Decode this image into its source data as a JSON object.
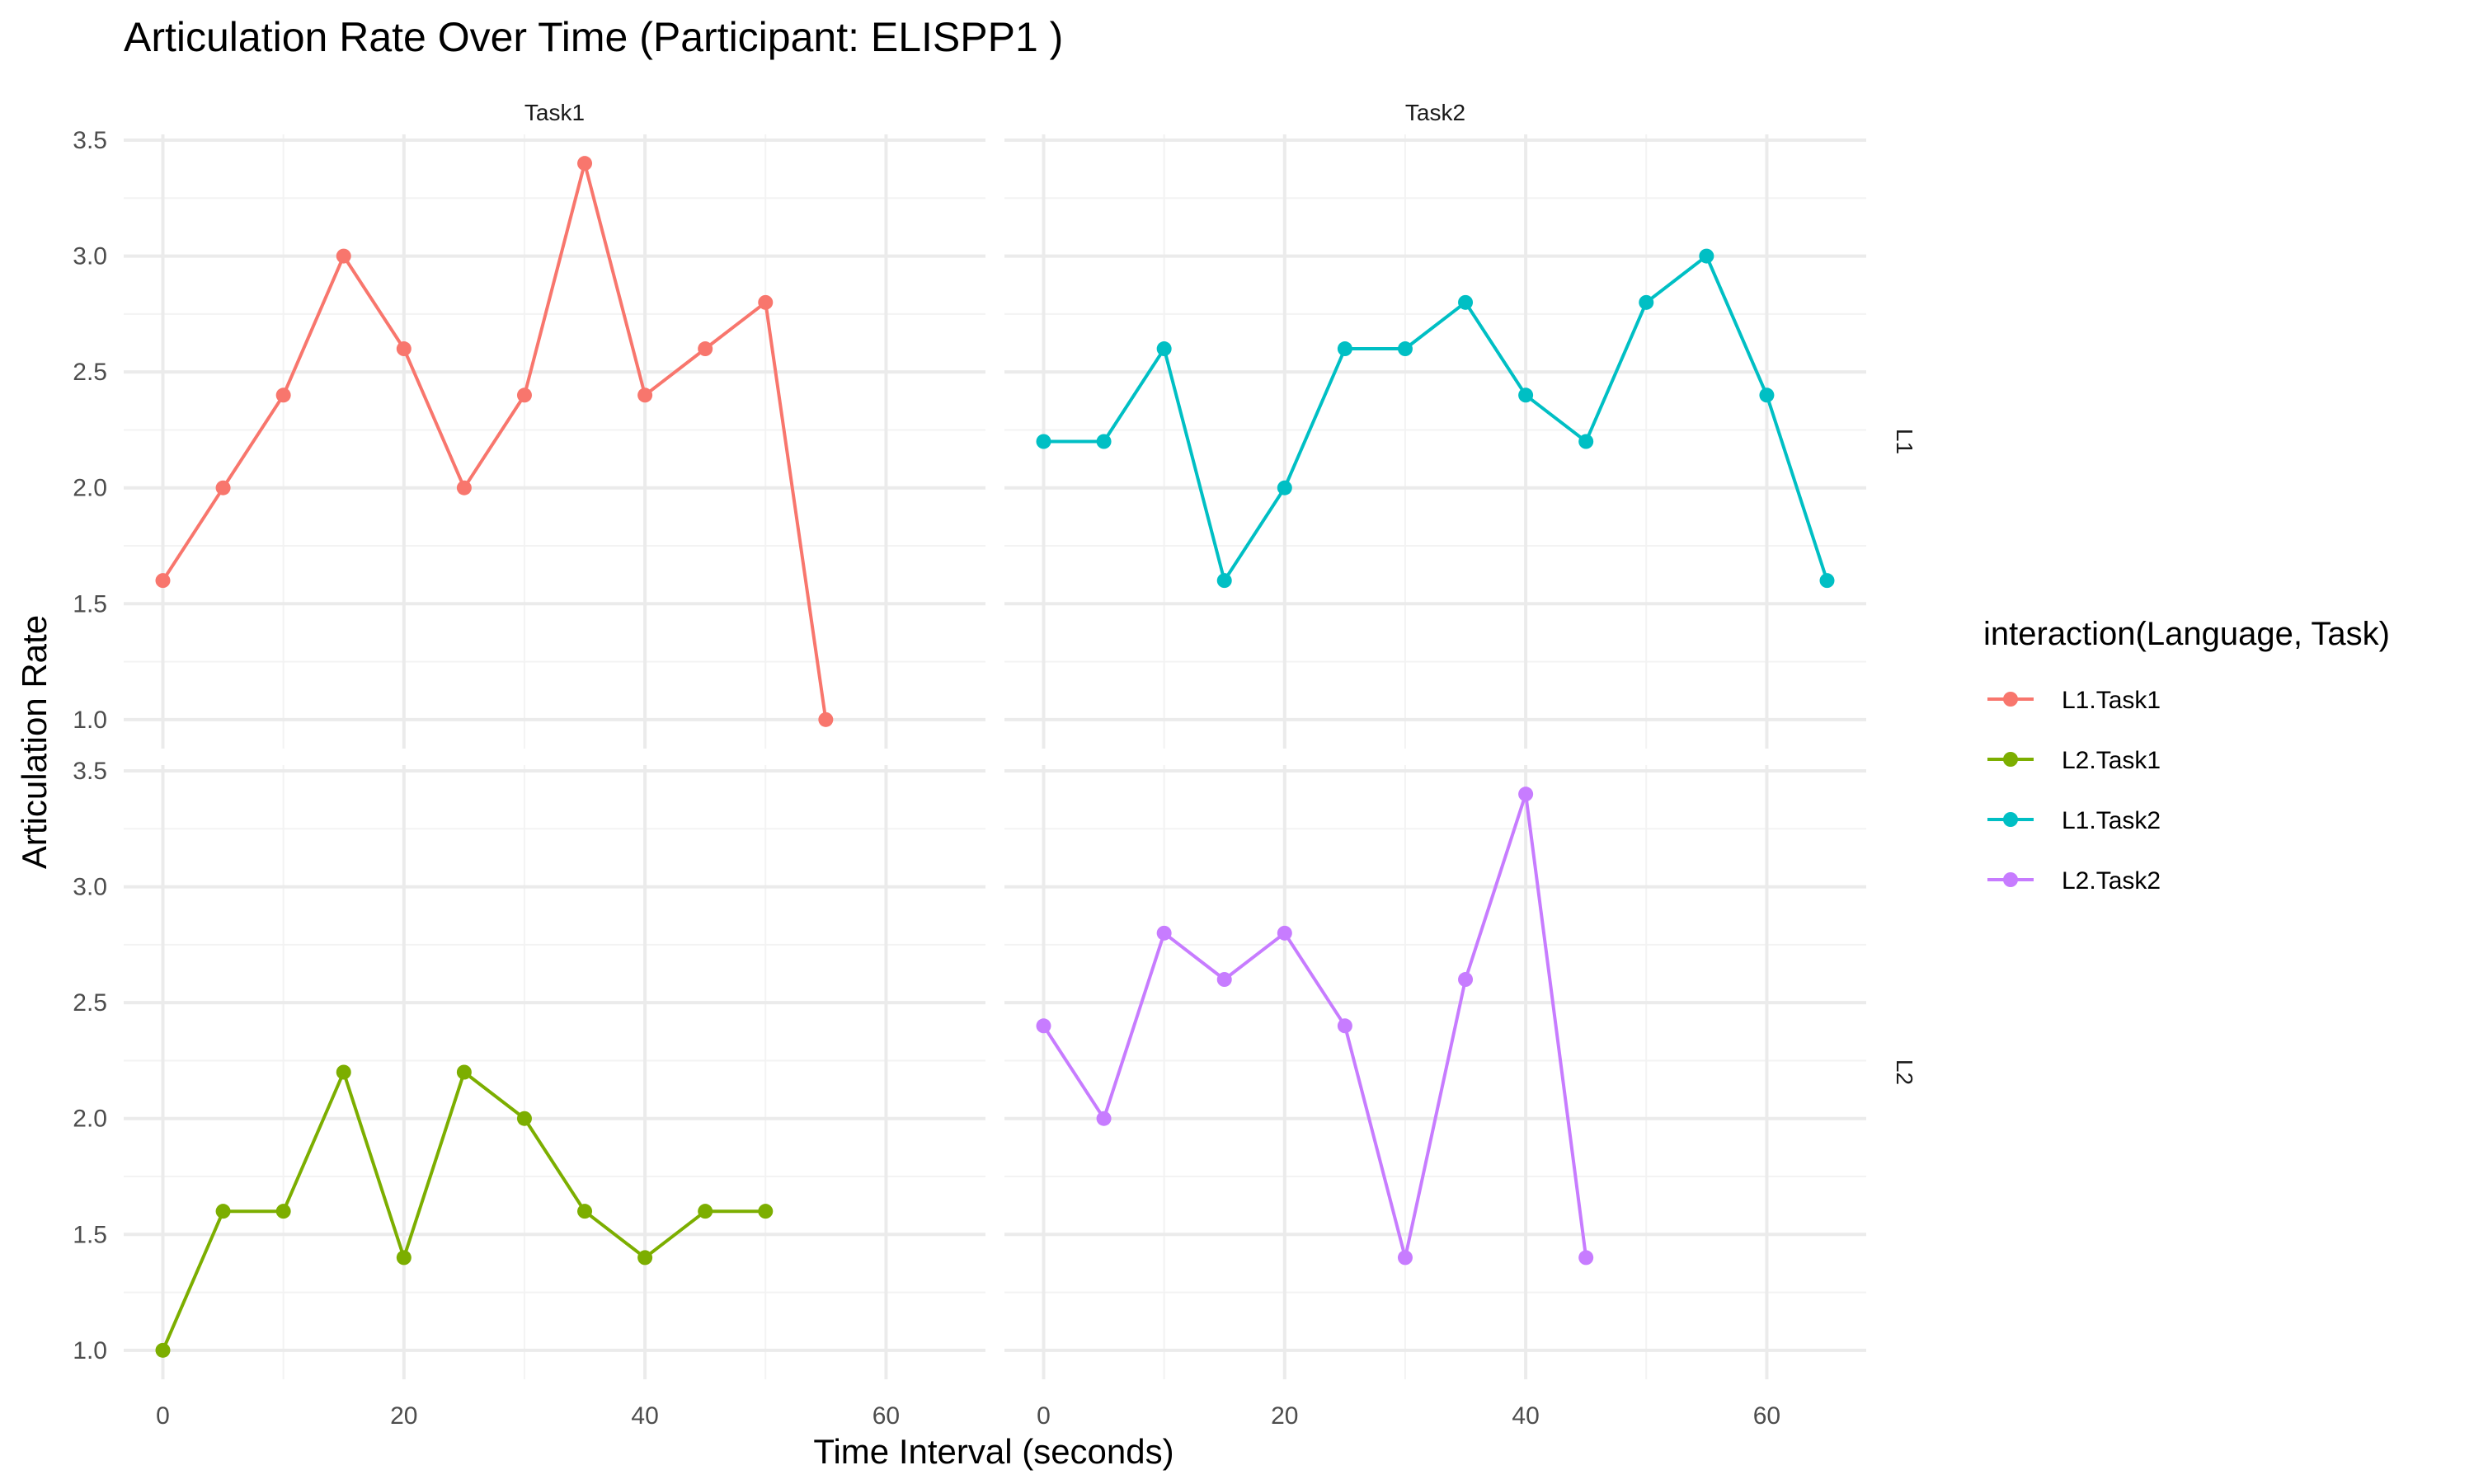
{
  "chart_data": {
    "type": "line",
    "title": "Articulation Rate Over Time (Participant: ELISPP1 )",
    "xlabel": "Time Interval (seconds)",
    "ylabel": "Articulation Rate",
    "xlim": [
      -3.25,
      68.25
    ],
    "ylim": [
      0.875,
      3.525
    ],
    "x_ticks": [
      0,
      20,
      40,
      60
    ],
    "y_ticks": [
      "1.0",
      "1.5",
      "2.0",
      "2.5",
      "3.0",
      "3.5"
    ],
    "x_tick_values": [
      0,
      20,
      40,
      60
    ],
    "y_tick_values": [
      1.0,
      1.5,
      2.0,
      2.5,
      3.0,
      3.5
    ],
    "grid": true,
    "facet_columns": [
      "Task1",
      "Task2"
    ],
    "facet_rows": [
      "L1",
      "L2"
    ],
    "legend": {
      "title": "interaction(Language, Task)",
      "placement": "right",
      "entries": [
        "L1.Task1",
        "L2.Task1",
        "L1.Task2",
        "L2.Task2"
      ]
    },
    "series": [
      {
        "name": "L1.Task1",
        "row": "L1",
        "col": "Task1",
        "color": "#F8766D",
        "x": [
          0,
          5,
          10,
          15,
          20,
          25,
          30,
          35,
          40,
          45,
          50,
          55
        ],
        "y": [
          1.6,
          2.0,
          2.4,
          3.0,
          2.6,
          2.0,
          2.4,
          3.4,
          2.4,
          2.6,
          2.8,
          1.0
        ]
      },
      {
        "name": "L2.Task1",
        "row": "L2",
        "col": "Task1",
        "color": "#7CAE00",
        "x": [
          0,
          5,
          10,
          15,
          20,
          25,
          30,
          35,
          40,
          45,
          50
        ],
        "y": [
          1.0,
          1.6,
          1.6,
          2.2,
          1.4,
          2.2,
          2.0,
          1.6,
          1.4,
          1.6,
          1.6
        ]
      },
      {
        "name": "L1.Task2",
        "row": "L1",
        "col": "Task2",
        "color": "#00BFC4",
        "x": [
          0,
          5,
          10,
          15,
          20,
          25,
          30,
          35,
          40,
          45,
          50,
          55,
          60,
          65
        ],
        "y": [
          2.2,
          2.2,
          2.6,
          1.6,
          2.0,
          2.6,
          2.6,
          2.8,
          2.4,
          2.2,
          2.8,
          3.0,
          2.4,
          1.6
        ]
      },
      {
        "name": "L2.Task2",
        "row": "L2",
        "col": "Task2",
        "color": "#C77CFF",
        "x": [
          0,
          5,
          10,
          15,
          20,
          25,
          30,
          35,
          40,
          45
        ],
        "y": [
          2.4,
          2.0,
          2.8,
          2.6,
          2.8,
          2.4,
          1.4,
          2.6,
          3.4,
          1.4
        ]
      }
    ]
  }
}
